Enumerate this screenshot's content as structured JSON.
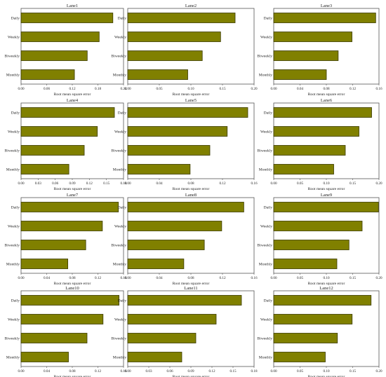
{
  "chart_data": [
    {
      "type": "bar",
      "title": "Lane1",
      "categories": [
        "Daily",
        "Weekly",
        "Biweekly",
        "Monthly"
      ],
      "values": [
        0.215,
        0.183,
        0.155,
        0.125
      ],
      "xlabel": "Root mean square error",
      "xlim": [
        0,
        0.24
      ],
      "xticks": [
        "0.00",
        "0.06",
        "0.12",
        "0.18",
        "0.24"
      ]
    },
    {
      "type": "bar",
      "title": "Lane2",
      "categories": [
        "Daily",
        "Weekly",
        "Biweekly",
        "Monthly"
      ],
      "values": [
        0.17,
        0.147,
        0.118,
        0.095
      ],
      "xlabel": "Root mean square error",
      "xlim": [
        0,
        0.2
      ],
      "xticks": [
        "0.00",
        "0.05",
        "0.10",
        "0.15",
        "0.20"
      ]
    },
    {
      "type": "bar",
      "title": "Lane3",
      "categories": [
        "Daily",
        "Weekly",
        "Biweekly",
        "Monthly"
      ],
      "values": [
        0.155,
        0.119,
        0.098,
        0.08
      ],
      "xlabel": "Root mean square error",
      "xlim": [
        0,
        0.16
      ],
      "xticks": [
        "0.00",
        "0.04",
        "0.08",
        "0.12",
        "0.16"
      ]
    },
    {
      "type": "bar",
      "title": "Lane4",
      "categories": [
        "Daily",
        "Weekly",
        "Biweekly",
        "Monthly"
      ],
      "values": [
        0.164,
        0.134,
        0.111,
        0.084
      ],
      "xlabel": "Root mean square error",
      "xlim": [
        0,
        0.18
      ],
      "xticks": [
        "0.00",
        "0.03",
        "0.06",
        "0.09",
        "0.12",
        "0.15",
        "0.18"
      ]
    },
    {
      "type": "bar",
      "title": "Lane5",
      "categories": [
        "Daily",
        "Weekly",
        "Biweekly",
        "Monthly"
      ],
      "values": [
        0.152,
        0.126,
        0.104,
        0.079
      ],
      "xlabel": "Root mean square error",
      "xlim": [
        0,
        0.16
      ],
      "xticks": [
        "0.00",
        "0.04",
        "0.08",
        "0.12",
        "0.16"
      ]
    },
    {
      "type": "bar",
      "title": "Lane6",
      "categories": [
        "Daily",
        "Weekly",
        "Biweekly",
        "Monthly"
      ],
      "values": [
        0.186,
        0.162,
        0.136,
        0.114
      ],
      "xlabel": "Root mean square error",
      "xlim": [
        0,
        0.2
      ],
      "xticks": [
        "0.00",
        "0.05",
        "0.10",
        "0.15",
        "0.20"
      ]
    },
    {
      "type": "bar",
      "title": "Lane7",
      "categories": [
        "Daily",
        "Weekly",
        "Biweekly",
        "Monthly"
      ],
      "values": [
        0.152,
        0.127,
        0.101,
        0.073
      ],
      "xlabel": "Root mean square error",
      "xlim": [
        0,
        0.16
      ],
      "xticks": [
        "0.00",
        "0.04",
        "0.08",
        "0.12",
        "0.16"
      ]
    },
    {
      "type": "bar",
      "title": "Lane8",
      "categories": [
        "Daily",
        "Weekly",
        "Biweekly",
        "Monthly"
      ],
      "values": [
        0.147,
        0.119,
        0.097,
        0.071
      ],
      "xlabel": "Root mean square error",
      "xlim": [
        0,
        0.16
      ],
      "xticks": [
        "0.00",
        "0.04",
        "0.08",
        "0.12",
        "0.16"
      ]
    },
    {
      "type": "bar",
      "title": "Lane9",
      "categories": [
        "Daily",
        "Weekly",
        "Biweekly",
        "Monthly"
      ],
      "values": [
        0.199,
        0.168,
        0.143,
        0.12
      ],
      "xlabel": "Root mean square error",
      "xlim": [
        0,
        0.2
      ],
      "xticks": [
        "0.00",
        "0.05",
        "0.10",
        "0.15",
        "0.20"
      ]
    },
    {
      "type": "bar",
      "title": "Lane10",
      "categories": [
        "Daily",
        "Weekly",
        "Biweekly",
        "Monthly"
      ],
      "values": [
        0.153,
        0.128,
        0.103,
        0.074
      ],
      "xlabel": "Root mean square error",
      "xlim": [
        0,
        0.16
      ],
      "xticks": [
        "0.00",
        "0.04",
        "0.08",
        "0.12",
        "0.16"
      ]
    },
    {
      "type": "bar",
      "title": "Lane11",
      "categories": [
        "Daily",
        "Weekly",
        "Biweekly",
        "Monthly"
      ],
      "values": [
        0.162,
        0.126,
        0.097,
        0.077
      ],
      "xlabel": "Root mean square error",
      "xlim": [
        0,
        0.18
      ],
      "xticks": [
        "0.00",
        "0.03",
        "0.06",
        "0.09",
        "0.12",
        "0.15",
        "0.18"
      ]
    },
    {
      "type": "bar",
      "title": "Lane12",
      "categories": [
        "Daily",
        "Weekly",
        "Biweekly",
        "Monthly"
      ],
      "values": [
        0.185,
        0.149,
        0.121,
        0.098
      ],
      "xlabel": "Root mean square error",
      "xlim": [
        0,
        0.2
      ],
      "xticks": [
        "0.00",
        "0.05",
        "0.10",
        "0.15",
        "0.20"
      ]
    }
  ]
}
